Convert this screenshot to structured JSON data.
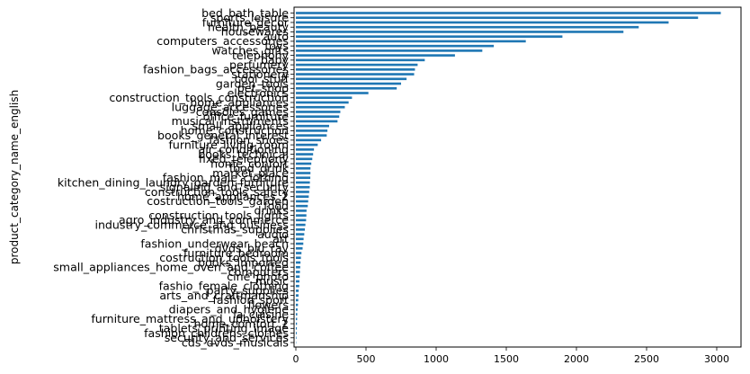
{
  "chart_data": {
    "type": "bar",
    "orientation": "horizontal",
    "ylabel": "product_category_name_english",
    "xlabel": "",
    "xlim": [
      0,
      3200
    ],
    "xticks": [
      0,
      500,
      1000,
      1500,
      2000,
      2500,
      3000
    ],
    "grid": false,
    "legend": "none",
    "bar_color": "#1f77b4",
    "categories": [
      "bed_bath_table",
      "sports_leisure",
      "furniture_decor",
      "health_beauty",
      "housewares",
      "auto",
      "computers_accessories",
      "toys",
      "watches_gifts",
      "telephony",
      "baby",
      "perfumery",
      "fashion_bags_accessories",
      "stationery",
      "cool_stuff",
      "garden_tools",
      "pet_shop",
      "electronics",
      "construction_tools_construction",
      "home_appliances",
      "luggage_accessories",
      "consoles_games",
      "office_furniture",
      "musical_instruments",
      "small_appliances",
      "home_construction",
      "books_general_interest",
      "fashion_shoes",
      "furniture_living_room",
      "air_conditioning",
      "books_technical",
      "fixed_telephony",
      "home_confort",
      "food_drink",
      "market_place",
      "fashion_male_clothing",
      "kitchen_dining_laundry_garden_furniture",
      "signaling_and_security",
      "construction_tools_safety",
      "home_appliances_2",
      "costruction_tools_garden",
      "food",
      "drinks",
      "construction_tools_lights",
      "agro_industry_and_commerce",
      "industry_commerce_and_business",
      "christmas_supplies",
      "audio",
      "art",
      "fashion_underwear_beach",
      "dvds_blu_ray",
      "furniture_bedroom",
      "costruction_tools_tools",
      "books_imported",
      "small_appliances_home_oven_and_coffee",
      "computers",
      "cine_photo",
      "music",
      "fashio_female_clothing",
      "party_supplies",
      "arts_and_craftmanship",
      "fashion_sport",
      "flowers",
      "diapers_and_hygiene",
      "la_cuisine",
      "furniture_mattress_and_upholstery",
      "home_comfort_2",
      "tablets_printing_image",
      "fashion_childrens_clothes",
      "security_and_services",
      "cds_dvds_musicals"
    ],
    "values": [
      3029,
      2867,
      2657,
      2444,
      2335,
      1900,
      1639,
      1411,
      1329,
      1134,
      919,
      868,
      849,
      843,
      789,
      750,
      719,
      517,
      400,
      376,
      349,
      317,
      309,
      297,
      237,
      225,
      220,
      180,
      156,
      129,
      123,
      117,
      110,
      104,
      104,
      103,
      100,
      99,
      95,
      92,
      88,
      85,
      76,
      75,
      73,
      68,
      64,
      60,
      55,
      53,
      48,
      40,
      36,
      33,
      31,
      29,
      27,
      25,
      24,
      20,
      19,
      17,
      15,
      12,
      10,
      9,
      8,
      7,
      6,
      4,
      2
    ]
  }
}
